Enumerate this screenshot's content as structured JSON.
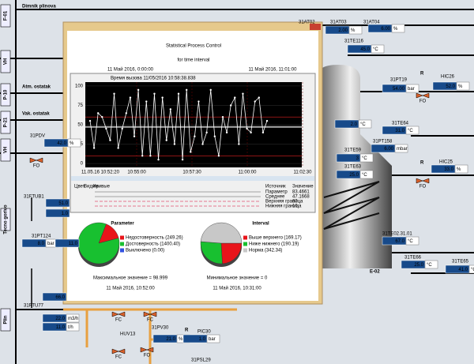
{
  "plant": {
    "left_labels": [
      "F-01",
      "VH",
      "P-10",
      "P-21",
      "VH",
      "Tecno gorivo",
      "Plin"
    ],
    "line_labels": [
      "Dimnik plinova",
      "Atm. ostatak",
      "Vak. ostatak"
    ],
    "vessel_label": "E-02",
    "valve_labels": [
      "FO",
      "FO",
      "FO",
      "FC",
      "FC",
      "FO",
      "FC"
    ],
    "mode_labels": [
      "R",
      "R",
      "R"
    ],
    "instruments": [
      {
        "tag": "31AT02"
      },
      {
        "tag": "31AT03",
        "value": "2.00",
        "unit": "%"
      },
      {
        "tag": "31AT04",
        "value": "6.00",
        "unit": "%"
      },
      {
        "tag": "31TE116",
        "value": "45.0",
        "unit": "°C"
      },
      {
        "tag": "31PT19",
        "value": "54.00",
        "unit": "bar"
      },
      {
        "tag": "HIC26",
        "value": "52.0",
        "unit": "%"
      },
      {
        "tag": "31TE64",
        "value": "31.0",
        "unit": "°C"
      },
      {
        "tag": "31PT158",
        "value": "6.00",
        "unit": "mbar"
      },
      {
        "tag": "31TE59",
        "value": "3",
        "unit": "°C"
      },
      {
        "tag": "31TE63",
        "value": "25.0",
        "unit": "°C"
      },
      {
        "tag": "HIC25",
        "value": "33.0",
        "unit": "%"
      },
      {
        "tag": "31TE02.31.01",
        "value": "67.0",
        "unit": "°C"
      },
      {
        "tag": "31TE66",
        "value": "25.0",
        "unit": "°C"
      },
      {
        "tag": "31TE65",
        "value": "41.0",
        "unit": "°C"
      },
      {
        "tag": "31PDV",
        "value": "42.0",
        "unit": "%"
      },
      {
        "tag": "31FTUB1",
        "value": "51.0"
      },
      {
        "value": "1.0"
      },
      {
        "tag": "31PT124",
        "value": "8.0",
        "unit": "bar"
      },
      {
        "value": "11.0"
      },
      {
        "tag": "31FTU77",
        "value": "66.0"
      },
      {
        "value": "22.0",
        "unit": "m3/h"
      },
      {
        "value": "11.0",
        "unit": "t/h"
      },
      {
        "tag": "31PV30",
        "value": "21.0",
        "unit": "%"
      },
      {
        "tag": "PIC30",
        "value": "1.0",
        "unit": "bar"
      },
      {
        "value": "2.0",
        "unit": "°C"
      },
      {
        "tag": "HUV13"
      },
      {
        "tag": "31PSL29"
      }
    ]
  },
  "spc": {
    "title": "Statistical Process Control",
    "subtitle": "for time interval",
    "from": "11 Май 2016, 0:00:00",
    "to": "11 Май 2016, 11:01:00",
    "call_time": "Время вызова 11/05/2016 10:58:38.838",
    "chart": {
      "type": "line",
      "color": "#ffffff",
      "values": [
        55,
        20,
        65,
        60,
        45,
        30,
        90,
        20,
        45,
        65,
        85,
        35,
        95,
        10,
        80,
        10,
        90,
        5,
        85,
        30,
        70,
        25,
        90,
        5,
        95,
        15,
        35,
        80,
        25,
        40,
        95,
        35,
        10,
        60,
        40,
        75,
        85,
        25,
        90,
        45,
        40,
        80,
        85,
        40,
        55
      ],
      "ylim": [
        -5,
        105
      ],
      "yticks": [
        0,
        25,
        50,
        75,
        100
      ],
      "xlabels": [
        "11.05.16 10:52:20",
        "10:55:00",
        "10:57:30",
        "11:00:00",
        "11:02:30"
      ]
    },
    "table": {
      "headers": [
        "Цвет",
        "Видим.",
        "Кривые",
        "Источник",
        "Значение"
      ],
      "rows": [
        {
          "source": "Параметр",
          "value": 83.4661
        },
        {
          "source": "Среднее",
          "value": 47.1668
        },
        {
          "source": "Верхняя граница",
          "value": 60
        },
        {
          "source": "Нижняя граница",
          "value": 10
        }
      ]
    },
    "pies": [
      {
        "type": "pie",
        "title": "Parameter",
        "names": [
          "Недостоверность",
          "Достоверность",
          "Выключено"
        ],
        "values": [
          249.26,
          1400.4,
          0
        ],
        "value_labels": [
          "(249.26)",
          "(1400.40)",
          "(0.00)"
        ],
        "colors": [
          "#e8141a",
          "#18c030",
          "#3050e0"
        ],
        "note": "Максимальное значение = 98.999",
        "time": "11 Май 2016, 10:52:00"
      },
      {
        "type": "pie",
        "title": "Interval",
        "names": [
          "Выше верхнего",
          "Ниже нижнего",
          "Норма"
        ],
        "values": [
          169.17,
          190.19,
          342.34
        ],
        "value_labels": [
          "(169.17)",
          "(190.19)",
          "(342.34)"
        ],
        "colors": [
          "#e8141a",
          "#18c030",
          "#c8c8c8"
        ],
        "note": "Минимальное значение = 0",
        "time": "11 Май 2016, 10:31:00"
      }
    ]
  }
}
